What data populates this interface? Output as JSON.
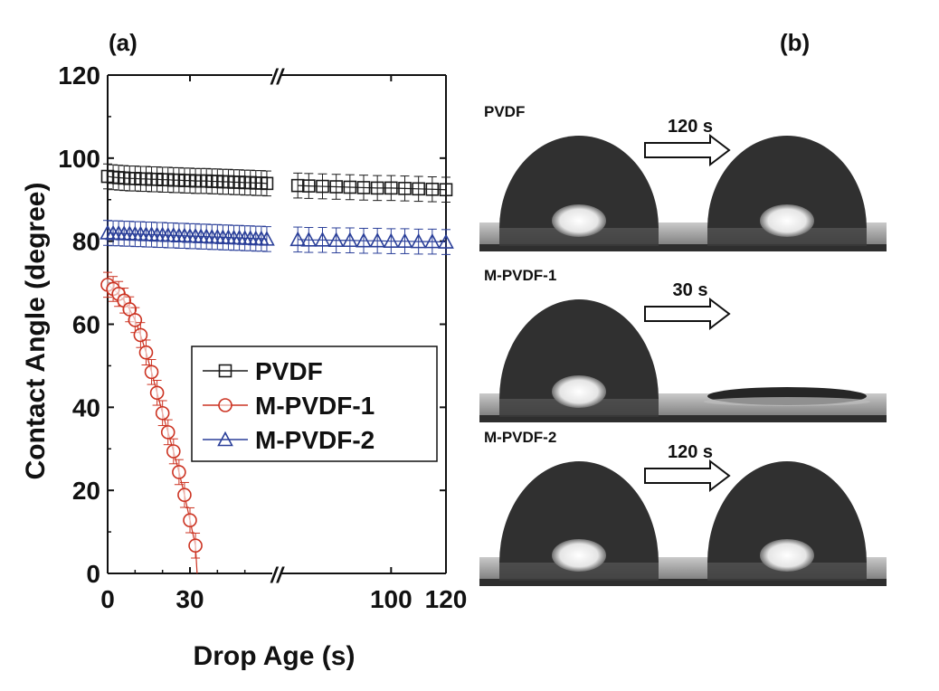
{
  "panel_a": {
    "label": "(a)",
    "chart_data": {
      "type": "scatter",
      "xlabel": "Drop Age (s)",
      "ylabel": "Contact Angle (degree)",
      "ylim": [
        0,
        120
      ],
      "x_segments": [
        {
          "range": [
            0,
            60
          ],
          "ticks": [
            0,
            30
          ]
        },
        {
          "range": [
            60,
            120
          ],
          "ticks": [
            100,
            120
          ]
        }
      ],
      "yticks": [
        0,
        20,
        40,
        60,
        80,
        100,
        120
      ],
      "axis_break_mark": "//",
      "legend_position": "center-right",
      "series": [
        {
          "name": "PVDF",
          "color": "#1a1a1a",
          "marker": "square",
          "x": [
            0,
            2,
            4,
            6,
            8,
            10,
            12,
            14,
            16,
            18,
            20,
            22,
            24,
            26,
            28,
            30,
            32,
            34,
            36,
            38,
            40,
            42,
            44,
            46,
            48,
            50,
            52,
            54,
            56,
            58,
            66,
            70,
            75,
            80,
            85,
            90,
            95,
            100,
            105,
            110,
            115,
            120
          ],
          "y": [
            95.6,
            95.4,
            95.3,
            95.2,
            95.1,
            95.1,
            95.0,
            95.0,
            94.9,
            94.9,
            94.8,
            94.8,
            94.7,
            94.7,
            94.6,
            94.6,
            94.5,
            94.5,
            94.5,
            94.4,
            94.4,
            94.3,
            94.3,
            94.2,
            94.2,
            94.1,
            94.1,
            94.0,
            94.0,
            93.9,
            93.4,
            93.3,
            93.2,
            93.1,
            93.0,
            92.9,
            92.8,
            92.8,
            92.7,
            92.6,
            92.5,
            92.4
          ],
          "error": 3
        },
        {
          "name": "M-PVDF-1",
          "color": "#cc3322",
          "marker": "circle",
          "x": [
            0,
            2,
            4,
            6,
            8,
            10,
            12,
            14,
            16,
            18,
            20,
            22,
            24,
            26,
            28,
            30,
            32
          ],
          "y": [
            69.5,
            68.5,
            67.3,
            65.7,
            63.6,
            61.0,
            57.4,
            53.2,
            48.5,
            43.5,
            38.6,
            34.0,
            29.4,
            24.4,
            18.9,
            12.8,
            6.7
          ],
          "error": 3
        },
        {
          "name": "M-PVDF-2",
          "color": "#2a3f99",
          "marker": "triangle",
          "x": [
            0,
            2,
            4,
            6,
            8,
            10,
            12,
            14,
            16,
            18,
            20,
            22,
            24,
            26,
            28,
            30,
            32,
            34,
            36,
            38,
            40,
            42,
            44,
            46,
            48,
            50,
            52,
            54,
            56,
            58,
            66,
            70,
            75,
            80,
            85,
            90,
            95,
            100,
            105,
            110,
            115,
            120
          ],
          "y": [
            82.0,
            81.9,
            81.9,
            81.8,
            81.8,
            81.7,
            81.7,
            81.6,
            81.6,
            81.5,
            81.5,
            81.4,
            81.4,
            81.3,
            81.3,
            81.2,
            81.2,
            81.1,
            81.1,
            81.0,
            81.0,
            80.9,
            80.9,
            80.8,
            80.8,
            80.7,
            80.7,
            80.6,
            80.6,
            80.5,
            80.4,
            80.3,
            80.3,
            80.2,
            80.2,
            80.1,
            80.1,
            80.0,
            80.0,
            79.9,
            79.9,
            79.8
          ],
          "error": 3
        }
      ]
    }
  },
  "panel_b": {
    "label": "(b)",
    "rows": [
      {
        "label": "PVDF",
        "time": "120 s",
        "after_state": "drop"
      },
      {
        "label": "M-PVDF-1",
        "time": "30 s",
        "after_state": "spread"
      },
      {
        "label": "M-PVDF-2",
        "time": "120 s",
        "after_state": "drop"
      }
    ]
  }
}
